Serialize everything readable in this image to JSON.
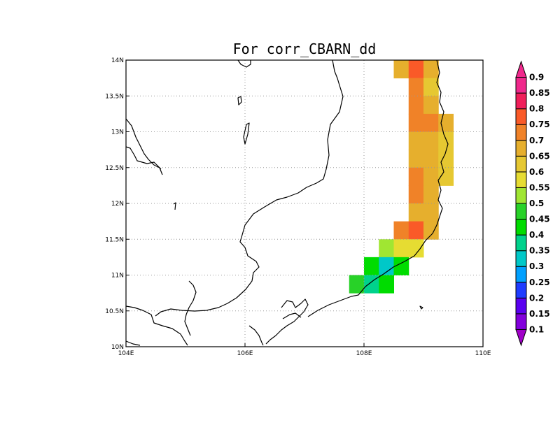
{
  "title": "For corr_CBARN_dd",
  "map": {
    "lon_range": [
      104,
      110
    ],
    "lat_range": [
      10,
      14
    ],
    "lon_ticks": [
      {
        "value": 104,
        "label": "104E"
      },
      {
        "value": 106,
        "label": "106E"
      },
      {
        "value": 108,
        "label": "108E"
      },
      {
        "value": 110,
        "label": "110E"
      }
    ],
    "lat_ticks": [
      {
        "value": 10,
        "label": "10N"
      },
      {
        "value": 10.5,
        "label": "10.5N"
      },
      {
        "value": 11,
        "label": "11N"
      },
      {
        "value": 11.5,
        "label": "11.5N"
      },
      {
        "value": 12,
        "label": "12N"
      },
      {
        "value": 12.5,
        "label": "12.5N"
      },
      {
        "value": 13,
        "label": "13N"
      },
      {
        "value": 13.5,
        "label": "13.5N"
      },
      {
        "value": 14,
        "label": "14N"
      }
    ],
    "grid": "dotted"
  },
  "colorbar": {
    "levels": [
      "0.1",
      "0.15",
      "0.2",
      "0.25",
      "0.3",
      "0.35",
      "0.4",
      "0.45",
      "0.5",
      "0.55",
      "0.6",
      "0.65",
      "0.7",
      "0.75",
      "0.8",
      "0.85",
      "0.9"
    ],
    "colors": [
      "#a000c8",
      "#8200dc",
      "#5a00f0",
      "#1e3cff",
      "#00a0ff",
      "#00c8c8",
      "#00d28c",
      "#00dc00",
      "#28d228",
      "#a0e632",
      "#e6dc32",
      "#e6c832",
      "#e6af2d",
      "#f08228",
      "#fa5a28",
      "#f01e5a",
      "#f0288c"
    ]
  },
  "chart_data": {
    "type": "heatmap",
    "title": "For corr_CBARN_dd",
    "cell_size_deg": 0.25,
    "cells": [
      {
        "lon": 108.625,
        "lat": 13.875,
        "value": 0.72
      },
      {
        "lon": 108.875,
        "lat": 13.875,
        "value": 0.82
      },
      {
        "lon": 109.125,
        "lat": 13.875,
        "value": 0.72
      },
      {
        "lon": 108.875,
        "lat": 13.625,
        "value": 0.77
      },
      {
        "lon": 109.125,
        "lat": 13.625,
        "value": 0.67
      },
      {
        "lon": 108.875,
        "lat": 13.375,
        "value": 0.77
      },
      {
        "lon": 109.125,
        "lat": 13.375,
        "value": 0.72
      },
      {
        "lon": 108.875,
        "lat": 13.125,
        "value": 0.77
      },
      {
        "lon": 109.125,
        "lat": 13.125,
        "value": 0.77
      },
      {
        "lon": 109.375,
        "lat": 13.125,
        "value": 0.72
      },
      {
        "lon": 108.875,
        "lat": 12.875,
        "value": 0.72
      },
      {
        "lon": 109.125,
        "lat": 12.875,
        "value": 0.72
      },
      {
        "lon": 109.375,
        "lat": 12.875,
        "value": 0.67
      },
      {
        "lon": 108.875,
        "lat": 12.625,
        "value": 0.72
      },
      {
        "lon": 109.125,
        "lat": 12.625,
        "value": 0.72
      },
      {
        "lon": 109.375,
        "lat": 12.625,
        "value": 0.67
      },
      {
        "lon": 108.875,
        "lat": 12.375,
        "value": 0.77
      },
      {
        "lon": 109.125,
        "lat": 12.375,
        "value": 0.72
      },
      {
        "lon": 109.375,
        "lat": 12.375,
        "value": 0.67
      },
      {
        "lon": 108.875,
        "lat": 12.125,
        "value": 0.77
      },
      {
        "lon": 109.125,
        "lat": 12.125,
        "value": 0.72
      },
      {
        "lon": 108.875,
        "lat": 11.875,
        "value": 0.72
      },
      {
        "lon": 109.125,
        "lat": 11.875,
        "value": 0.72
      },
      {
        "lon": 108.625,
        "lat": 11.625,
        "value": 0.77
      },
      {
        "lon": 108.875,
        "lat": 11.625,
        "value": 0.82
      },
      {
        "lon": 109.125,
        "lat": 11.625,
        "value": 0.72
      },
      {
        "lon": 108.375,
        "lat": 11.375,
        "value": 0.57
      },
      {
        "lon": 108.625,
        "lat": 11.375,
        "value": 0.62
      },
      {
        "lon": 108.875,
        "lat": 11.375,
        "value": 0.62
      },
      {
        "lon": 108.125,
        "lat": 11.125,
        "value": 0.47
      },
      {
        "lon": 108.375,
        "lat": 11.125,
        "value": 0.37
      },
      {
        "lon": 108.625,
        "lat": 11.125,
        "value": 0.47
      },
      {
        "lon": 107.875,
        "lat": 10.875,
        "value": 0.52
      },
      {
        "lon": 108.125,
        "lat": 10.875,
        "value": 0.42
      },
      {
        "lon": 108.375,
        "lat": 10.875,
        "value": 0.47
      }
    ]
  }
}
